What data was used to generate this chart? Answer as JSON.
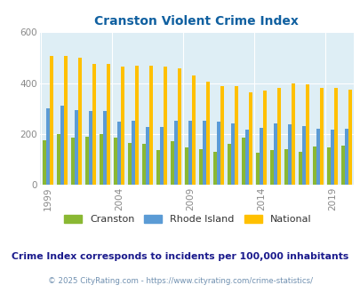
{
  "title": "Cranston Violent Crime Index",
  "years": [
    1999,
    2000,
    2001,
    2002,
    2003,
    2004,
    2005,
    2006,
    2007,
    2008,
    2009,
    2010,
    2011,
    2012,
    2013,
    2014,
    2015,
    2016,
    2017,
    2018,
    2019,
    2020
  ],
  "cranston": [
    175,
    200,
    185,
    190,
    198,
    185,
    165,
    160,
    135,
    170,
    148,
    140,
    128,
    160,
    185,
    125,
    135,
    140,
    128,
    150,
    145,
    155
  ],
  "rhode_island": [
    300,
    310,
    295,
    290,
    290,
    248,
    252,
    228,
    228,
    250,
    252,
    250,
    248,
    240,
    218,
    222,
    240,
    238,
    230,
    220,
    218,
    220
  ],
  "national": [
    508,
    508,
    500,
    475,
    475,
    463,
    469,
    469,
    465,
    456,
    430,
    405,
    387,
    387,
    365,
    372,
    380,
    400,
    395,
    380,
    380,
    375
  ],
  "cranston_color": "#8ab833",
  "rhode_island_color": "#5b9bd5",
  "national_color": "#ffc000",
  "bg_color": "#deeef5",
  "title_color": "#1060a0",
  "ylabel_max": 600,
  "yticks": [
    0,
    200,
    400,
    600
  ],
  "subtitle": "Crime Index corresponds to incidents per 100,000 inhabitants",
  "footer": "© 2025 CityRating.com - https://www.cityrating.com/crime-statistics/",
  "subtitle_color": "#1a1a8c",
  "footer_color": "#7090b0",
  "tick_years": [
    1999,
    2004,
    2009,
    2014,
    2019
  ],
  "legend_labels": [
    "Cranston",
    "Rhode Island",
    "National"
  ]
}
